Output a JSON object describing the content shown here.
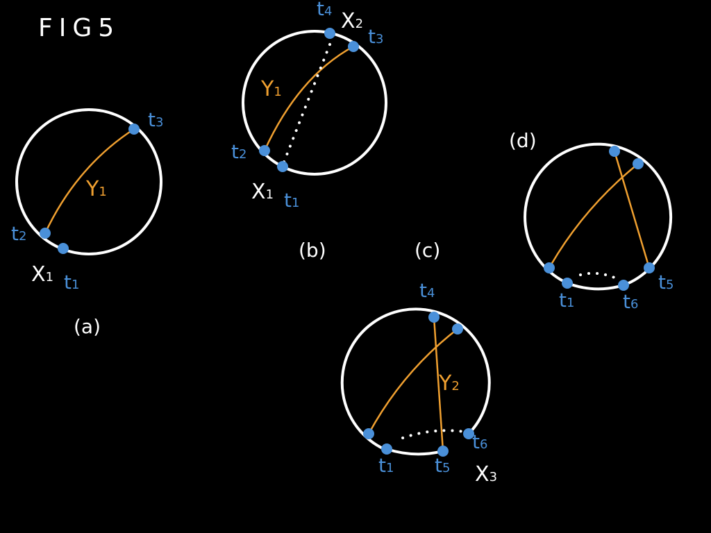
{
  "title": "FIG5",
  "colors": {
    "background": "#000000",
    "circle": "#ffffff",
    "curve": "#f0a030",
    "point": "#4a90d9"
  },
  "panels": {
    "a": {
      "label": "(a)",
      "labels": {
        "t1": "t",
        "t1_sub": "1",
        "t2": "t",
        "t2_sub": "2",
        "t3": "t",
        "t3_sub": "3",
        "x1": "X",
        "x1_sub": "1",
        "y1": "Y",
        "y1_sub": "1"
      }
    },
    "b": {
      "label": "(b)",
      "labels": {
        "t1": "t",
        "t1_sub": "1",
        "t2": "t",
        "t2_sub": "2",
        "t3": "t",
        "t3_sub": "3",
        "t4": "t",
        "t4_sub": "4",
        "x1": "X",
        "x1_sub": "1",
        "x2": "X",
        "x2_sub": "2",
        "y1": "Y",
        "y1_sub": "1"
      }
    },
    "c": {
      "label": "(c)",
      "labels": {
        "t1": "t",
        "t1_sub": "1",
        "t4": "t",
        "t4_sub": "4",
        "t5": "t",
        "t5_sub": "5",
        "t6": "t",
        "t6_sub": "6",
        "x3": "X",
        "x3_sub": "3",
        "y2": "Y",
        "y2_sub": "2"
      }
    },
    "d": {
      "label": "(d)",
      "labels": {
        "t1": "t",
        "t1_sub": "1",
        "t5": "t",
        "t5_sub": "5",
        "t6": "t",
        "t6_sub": "6"
      }
    }
  }
}
